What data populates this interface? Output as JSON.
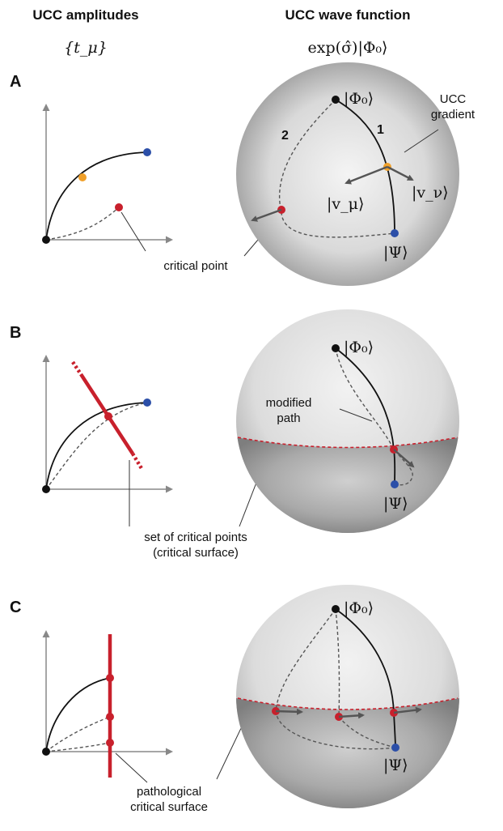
{
  "headers": {
    "left_title": "UCC amplitudes",
    "left_math": "{t_μ}",
    "right_title": "UCC wave function",
    "right_math": "exp(σ̂)|Φ₀⟩"
  },
  "colors": {
    "red": "#c8202c",
    "blue": "#2c4fa8",
    "orange": "#f0a02a",
    "black": "#111111",
    "arrow": "#555555",
    "axis": "#888888"
  },
  "panels": [
    {
      "id": "A",
      "label": "A",
      "ket_phi0": "|Φ₀⟩",
      "ket_psi": "|Ψ⟩",
      "ket_vmu": "|v_μ⟩",
      "ket_vnu": "|v_ν⟩",
      "path_1_label": "1",
      "path_2_label": "2",
      "gradient_label_line1": "UCC",
      "gradient_label_line2": "gradient",
      "critical_point_label": "critical point"
    },
    {
      "id": "B",
      "label": "B",
      "ket_phi0": "|Φ₀⟩",
      "ket_psi": "|Ψ⟩",
      "modified_path_line1": "modified",
      "modified_path_line2": "path",
      "critical_set_line1": "set of critical points",
      "critical_set_line2": "(critical surface)"
    },
    {
      "id": "C",
      "label": "C",
      "ket_phi0": "|Φ₀⟩",
      "ket_psi": "|Ψ⟩",
      "pathological_line1": "pathological",
      "pathological_line2": "critical surface"
    }
  ]
}
